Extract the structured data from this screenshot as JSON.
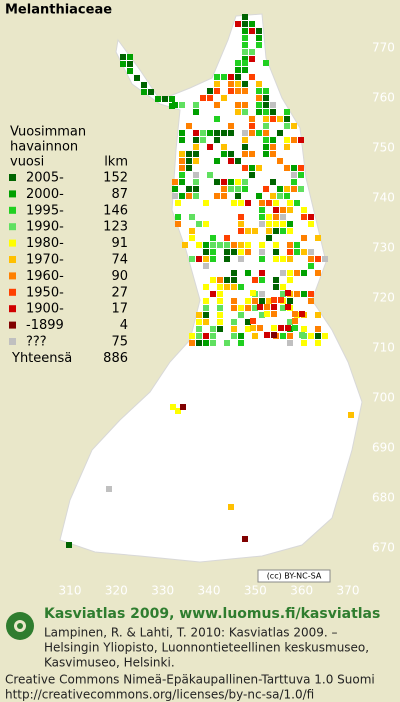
{
  "title": "Melanthiaceae",
  "legend": {
    "heading": [
      "Vuosimman",
      "havainnon",
      "vuosi"
    ],
    "count_heading": "lkm",
    "rows": [
      {
        "label": "2005-",
        "count": 152,
        "color": "#006400"
      },
      {
        "label": "2000-",
        "count": 87,
        "color": "#00a000"
      },
      {
        "label": "1995-",
        "count": 146,
        "color": "#20d020"
      },
      {
        "label": "1990-",
        "count": 123,
        "color": "#60e060"
      },
      {
        "label": "1980-",
        "count": 91,
        "color": "#ffff00"
      },
      {
        "label": "1970-",
        "count": 74,
        "color": "#ffc000"
      },
      {
        "label": "1960-",
        "count": 90,
        "color": "#ff8000"
      },
      {
        "label": "1950-",
        "count": 27,
        "color": "#ff4000"
      },
      {
        "label": "1900-",
        "count": 17,
        "color": "#d00000"
      },
      {
        "label": "-1899",
        "count": 4,
        "color": "#800000"
      },
      {
        "label": "???",
        "count": 75,
        "color": "#c0c0c0"
      }
    ],
    "total_label": "Yhteensä",
    "total": 886
  },
  "map": {
    "yticks": [
      770,
      760,
      750,
      740,
      730,
      720,
      710,
      700,
      690,
      680,
      670
    ],
    "xticks": [
      310,
      320,
      330,
      340,
      350,
      360,
      370
    ]
  },
  "badge": "(cc) BY-NC-SA",
  "footer": {
    "brand": "Kasviatlas 2009, www.luomus.fi/kasviatlas",
    "citation": [
      "Lampinen, R. & Lahti, T. 2010: Kasviatlas 2009. –",
      "Helsingin Yliopisto, Luonnontieteellinen keskusmuseo,",
      "Kasvimuseo, Helsinki."
    ],
    "license": [
      "Creative Commons Nimeä-Epäkaupallinen-Tarttuva 1.0 Suomi",
      "http://creativecommons.org/licenses/by-nc-sa/1.0/fi"
    ]
  }
}
